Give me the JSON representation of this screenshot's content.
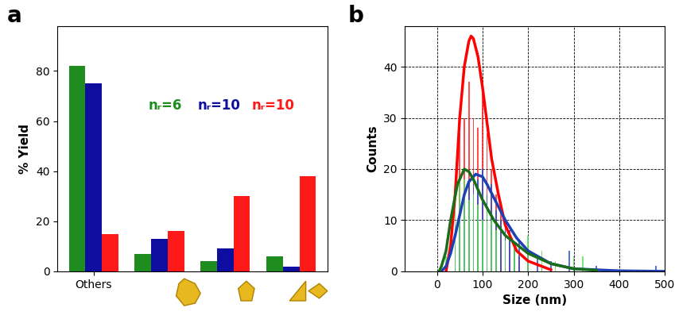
{
  "chart_data": [
    {
      "type": "bar",
      "title": "a",
      "y_label": "% Yield",
      "categories": [
        "Others",
        null,
        null,
        null
      ],
      "ylim": [
        0,
        98
      ],
      "yticks": [
        0,
        20,
        40,
        60,
        80
      ],
      "series": [
        {
          "name": "nᵣ=6",
          "color": "#1e8c1e",
          "values": [
            82,
            7,
            4,
            6
          ]
        },
        {
          "name": "nᵣ=10",
          "color": "#0d0da0",
          "values": [
            75,
            13,
            9,
            2
          ]
        },
        {
          "name": "nᵣ=10",
          "color": "#ff1a1a",
          "values": [
            15,
            16,
            30,
            38
          ]
        }
      ]
    },
    {
      "type": "bar",
      "title": "b",
      "x_label": "Size (nm)",
      "y_label": "Counts",
      "xlim": [
        -70,
        500
      ],
      "xticks": [
        0,
        100,
        200,
        300,
        400,
        500
      ],
      "ylim": [
        0,
        48
      ],
      "yticks": [
        0,
        10,
        20,
        30,
        40
      ],
      "grid": true,
      "series": [
        {
          "type": "bar",
          "color": "#ff2020",
          "x": [
            40,
            50,
            60,
            70,
            80,
            90,
            100,
            110,
            120,
            130,
            140,
            150,
            160,
            170,
            180,
            200,
            230
          ],
          "values": [
            5,
            27,
            30,
            37,
            30,
            28,
            37,
            27,
            20,
            15,
            12,
            10,
            8,
            5,
            3,
            2,
            1
          ]
        },
        {
          "type": "bar",
          "color": "#2a4fd0",
          "x": [
            20,
            40,
            50,
            60,
            70,
            80,
            90,
            100,
            110,
            120,
            130,
            140,
            150,
            160,
            170,
            180,
            200,
            220,
            250,
            290,
            350,
            480
          ],
          "values": [
            1,
            5,
            10,
            14,
            18,
            17,
            18,
            20,
            15,
            17,
            12,
            10,
            8,
            8,
            5,
            6,
            4,
            3,
            2,
            4,
            1,
            1
          ]
        },
        {
          "type": "bar",
          "color": "#55e055",
          "x": [
            20,
            40,
            50,
            60,
            70,
            80,
            90,
            100,
            110,
            120,
            130,
            150,
            170,
            200,
            230,
            260,
            300,
            320
          ],
          "values": [
            3,
            12,
            18,
            18,
            14,
            15,
            13,
            10,
            12,
            10,
            8,
            6,
            5,
            7,
            4,
            2,
            3,
            3
          ]
        },
        {
          "type": "line",
          "color": "#ff0000",
          "x": [
            20,
            30,
            40,
            50,
            60,
            70,
            75,
            80,
            90,
            100,
            110,
            120,
            135,
            150,
            175,
            200,
            250
          ],
          "values": [
            0,
            5,
            15,
            30,
            40,
            45,
            46,
            45.5,
            42,
            36,
            29,
            22,
            15,
            9,
            4,
            2,
            0.3
          ]
        },
        {
          "type": "line",
          "color": "#1f3fb5",
          "x": [
            10,
            20,
            30,
            40,
            50,
            60,
            70,
            85,
            100,
            110,
            130,
            150,
            175,
            200,
            250,
            300,
            400,
            500
          ],
          "values": [
            0,
            1,
            3.5,
            7,
            11,
            15,
            17.5,
            19,
            18.5,
            17,
            13.5,
            10,
            6.5,
            4,
            1.5,
            0.5,
            0.1,
            0
          ]
        },
        {
          "type": "line",
          "color": "#1a6e1a",
          "x": [
            5,
            10,
            20,
            30,
            45,
            60,
            70,
            80,
            100,
            125,
            150,
            200,
            250,
            300,
            350
          ],
          "values": [
            0,
            1,
            4,
            10,
            17,
            20,
            19.5,
            18,
            14,
            10,
            7,
            3.5,
            1.5,
            0.5,
            0.2
          ]
        }
      ]
    }
  ]
}
